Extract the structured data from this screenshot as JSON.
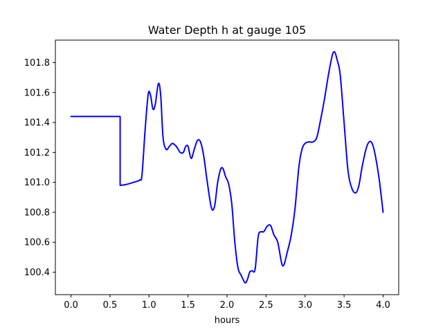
{
  "chart_data": {
    "type": "line",
    "title": "Water Depth h at gauge 105",
    "xlabel": "hours",
    "ylabel": "",
    "xlim": [
      -0.2,
      4.2
    ],
    "ylim": [
      100.25,
      101.95
    ],
    "grid": false,
    "x_ticks": [
      0.0,
      0.5,
      1.0,
      1.5,
      2.0,
      2.5,
      3.0,
      3.5,
      4.0
    ],
    "x_tick_labels": [
      "0.0",
      "0.5",
      "1.0",
      "1.5",
      "2.0",
      "2.5",
      "3.0",
      "3.5",
      "4.0"
    ],
    "y_ticks": [
      100.4,
      100.6,
      100.8,
      101.0,
      101.2,
      101.4,
      101.6,
      101.8
    ],
    "y_tick_labels": [
      "100.4",
      "100.6",
      "100.8",
      "101.0",
      "101.2",
      "101.4",
      "101.6",
      "101.8"
    ],
    "series": [
      {
        "color": "#0000ff",
        "x": [
          0.0,
          0.25,
          0.4,
          0.55,
          0.63,
          0.63,
          0.7,
          0.8,
          0.88,
          0.91,
          0.95,
          0.99,
          1.02,
          1.05,
          1.08,
          1.12,
          1.15,
          1.18,
          1.22,
          1.26,
          1.3,
          1.35,
          1.4,
          1.44,
          1.47,
          1.5,
          1.54,
          1.58,
          1.62,
          1.66,
          1.7,
          1.75,
          1.8,
          1.84,
          1.88,
          1.92,
          1.95,
          1.98,
          2.02,
          2.06,
          2.1,
          2.14,
          2.18,
          2.23,
          2.26,
          2.29,
          2.32,
          2.36,
          2.4,
          2.44,
          2.47,
          2.52,
          2.56,
          2.6,
          2.65,
          2.7,
          2.73,
          2.77,
          2.82,
          2.87,
          2.92,
          2.96,
          3.0,
          3.05,
          3.1,
          3.15,
          3.2,
          3.25,
          3.3,
          3.35,
          3.38,
          3.41,
          3.45,
          3.5,
          3.55,
          3.6,
          3.65,
          3.69,
          3.73,
          3.78,
          3.82,
          3.86,
          3.9,
          3.95,
          4.0
        ],
        "y": [
          101.44,
          101.44,
          101.44,
          101.44,
          101.44,
          100.98,
          100.985,
          101.0,
          101.015,
          101.05,
          101.35,
          101.59,
          101.58,
          101.49,
          101.52,
          101.66,
          101.58,
          101.3,
          101.22,
          101.24,
          101.26,
          101.24,
          101.2,
          101.2,
          101.24,
          101.24,
          101.16,
          101.22,
          101.28,
          101.27,
          101.18,
          100.99,
          100.83,
          100.84,
          101.0,
          101.09,
          101.09,
          101.04,
          100.99,
          100.86,
          100.6,
          100.43,
          100.38,
          100.33,
          100.35,
          100.4,
          100.41,
          100.42,
          100.64,
          100.67,
          100.67,
          100.71,
          100.71,
          100.65,
          100.6,
          100.46,
          100.45,
          100.53,
          100.64,
          100.82,
          101.1,
          101.22,
          101.26,
          101.27,
          101.27,
          101.3,
          101.42,
          101.56,
          101.72,
          101.85,
          101.87,
          101.82,
          101.72,
          101.4,
          101.08,
          100.96,
          100.93,
          100.98,
          101.1,
          101.22,
          101.27,
          101.26,
          101.18,
          101.02,
          100.8
        ]
      }
    ]
  }
}
